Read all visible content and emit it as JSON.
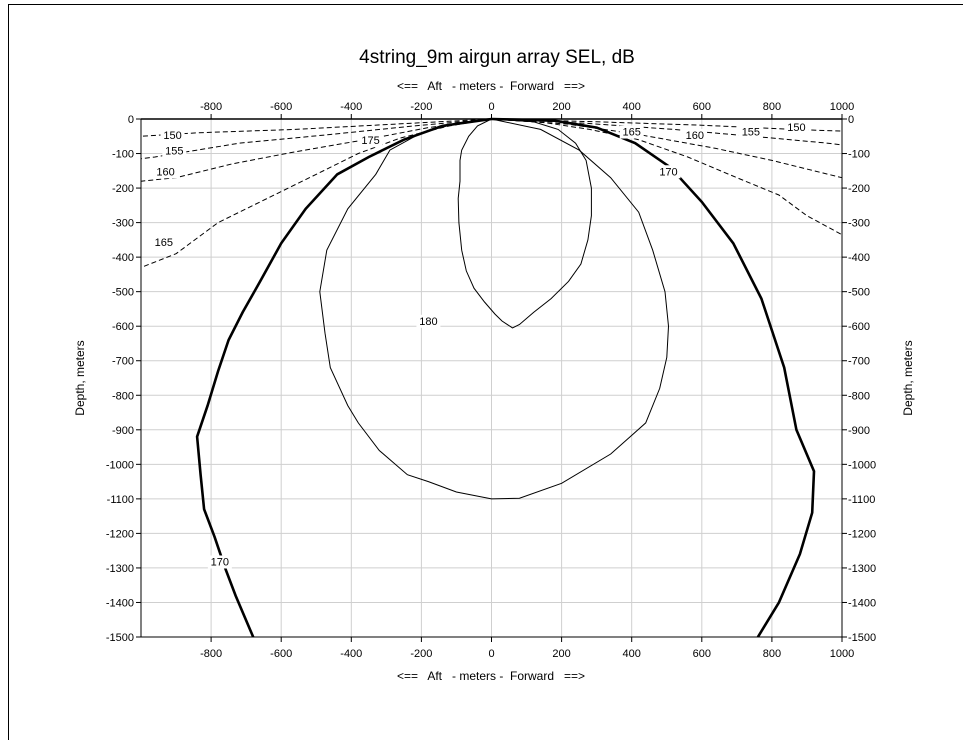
{
  "chart_data": {
    "type": "contour",
    "title": "4string_9m airgun array SEL, dB",
    "xlabel_top": "<==   Aft   - meters -  Forward   ==>",
    "xlabel_bottom": "<==   Aft   - meters -  Forward   ==>",
    "ylabel_left": "Depth, meters",
    "ylabel_right": "Depth, meters",
    "xlim": [
      -1000,
      1000
    ],
    "ylim": [
      -1500,
      0
    ],
    "x_ticks": [
      -800,
      -600,
      -400,
      -200,
      0,
      200,
      400,
      600,
      800,
      1000
    ],
    "y_ticks": [
      0,
      -100,
      -200,
      -300,
      -400,
      -500,
      -600,
      -700,
      -800,
      -900,
      -1000,
      -1100,
      -1200,
      -1300,
      -1400,
      -1500
    ],
    "grid": true,
    "contours": [
      {
        "level": "180",
        "style": "thin",
        "labels": [
          {
            "text": "180",
            "x": -180,
            "y": -593
          }
        ],
        "points": [
          [
            0,
            0
          ],
          [
            -40,
            -20
          ],
          [
            -65,
            -50
          ],
          [
            -85,
            -90
          ],
          [
            -90,
            -120
          ],
          [
            -90,
            -180
          ],
          [
            -95,
            -230
          ],
          [
            -93,
            -300
          ],
          [
            -85,
            -380
          ],
          [
            -72,
            -440
          ],
          [
            -50,
            -490
          ],
          [
            -20,
            -530
          ],
          [
            10,
            -565
          ],
          [
            30,
            -585
          ],
          [
            60,
            -605
          ],
          [
            80,
            -595
          ],
          [
            120,
            -560
          ],
          [
            170,
            -520
          ],
          [
            220,
            -470
          ],
          [
            255,
            -420
          ],
          [
            275,
            -350
          ],
          [
            285,
            -280
          ],
          [
            285,
            -200
          ],
          [
            270,
            -120
          ],
          [
            240,
            -70
          ],
          [
            190,
            -30
          ],
          [
            120,
            -8
          ],
          [
            0,
            0
          ]
        ]
      },
      {
        "level": "175",
        "style": "thin",
        "labels": [
          {
            "text": "175",
            "x": -345,
            "y": -70
          }
        ],
        "points": [
          [
            0,
            0
          ],
          [
            -90,
            -10
          ],
          [
            -200,
            -40
          ],
          [
            -290,
            -90
          ],
          [
            -330,
            -160
          ],
          [
            -410,
            -260
          ],
          [
            -470,
            -380
          ],
          [
            -490,
            -500
          ],
          [
            -475,
            -620
          ],
          [
            -460,
            -720
          ],
          [
            -410,
            -830
          ],
          [
            -380,
            -880
          ],
          [
            -320,
            -960
          ],
          [
            -240,
            -1030
          ],
          [
            -180,
            -1050
          ],
          [
            -100,
            -1080
          ],
          [
            0,
            -1100
          ],
          [
            80,
            -1098
          ],
          [
            200,
            -1055
          ],
          [
            340,
            -970
          ],
          [
            440,
            -880
          ],
          [
            480,
            -780
          ],
          [
            500,
            -690
          ],
          [
            505,
            -600
          ],
          [
            495,
            -500
          ],
          [
            460,
            -380
          ],
          [
            420,
            -270
          ],
          [
            340,
            -170
          ],
          [
            250,
            -90
          ],
          [
            140,
            -30
          ],
          [
            0,
            0
          ]
        ]
      },
      {
        "level": "170",
        "style": "thick",
        "labels": [
          {
            "text": "170",
            "x": 505,
            "y": -160
          },
          {
            "text": "170",
            "x": -775,
            "y": -1290
          }
        ],
        "points": [
          [
            0,
            0
          ],
          [
            -140,
            -20
          ],
          [
            -250,
            -60
          ],
          [
            -350,
            -110
          ],
          [
            -440,
            -160
          ],
          [
            -530,
            -260
          ],
          [
            -600,
            -360
          ],
          [
            -660,
            -470
          ],
          [
            -710,
            -560
          ],
          [
            -750,
            -640
          ],
          [
            -780,
            -730
          ],
          [
            -810,
            -830
          ],
          [
            -840,
            -920
          ],
          [
            -830,
            -1030
          ],
          [
            -820,
            -1130
          ],
          [
            -790,
            -1210
          ],
          [
            -760,
            -1300
          ],
          [
            -730,
            -1380
          ],
          [
            -680,
            -1500
          ]
        ],
        "points2": [
          [
            0,
            0
          ],
          [
            180,
            -5
          ],
          [
            300,
            -25
          ],
          [
            410,
            -70
          ],
          [
            510,
            -140
          ],
          [
            600,
            -240
          ],
          [
            690,
            -360
          ],
          [
            770,
            -520
          ],
          [
            835,
            -720
          ],
          [
            870,
            -900
          ],
          [
            920,
            -1020
          ],
          [
            915,
            -1140
          ],
          [
            880,
            -1260
          ],
          [
            820,
            -1400
          ],
          [
            760,
            -1500
          ]
        ]
      },
      {
        "level": "165",
        "style": "dashed",
        "labels": [
          {
            "text": "165",
            "x": 400,
            "y": -45
          },
          {
            "text": "165",
            "x": -935,
            "y": -365
          }
        ],
        "points": [
          [
            0,
            0
          ],
          [
            -120,
            -20
          ],
          [
            -260,
            -55
          ],
          [
            -380,
            -100
          ],
          [
            -500,
            -160
          ],
          [
            -620,
            -220
          ],
          [
            -780,
            -300
          ],
          [
            -900,
            -390
          ],
          [
            -1000,
            -430
          ]
        ],
        "points2": [
          [
            0,
            0
          ],
          [
            150,
            -10
          ],
          [
            280,
            -30
          ],
          [
            420,
            -60
          ],
          [
            560,
            -110
          ],
          [
            700,
            -170
          ],
          [
            820,
            -220
          ],
          [
            900,
            -280
          ],
          [
            1000,
            -335
          ]
        ]
      },
      {
        "level": "160",
        "style": "dashed",
        "labels": [
          {
            "text": "160",
            "x": 580,
            "y": -55
          },
          {
            "text": "160",
            "x": -930,
            "y": -160
          }
        ],
        "points": [
          [
            0,
            0
          ],
          [
            -180,
            -25
          ],
          [
            -360,
            -60
          ],
          [
            -560,
            -95
          ],
          [
            -740,
            -130
          ],
          [
            -900,
            -170
          ],
          [
            -1000,
            -180
          ]
        ],
        "points2": [
          [
            0,
            0
          ],
          [
            220,
            -15
          ],
          [
            420,
            -45
          ],
          [
            640,
            -85
          ],
          [
            800,
            -120
          ],
          [
            920,
            -150
          ],
          [
            1000,
            -170
          ]
        ]
      },
      {
        "level": "155",
        "style": "dashed",
        "labels": [
          {
            "text": "155",
            "x": 740,
            "y": -45
          },
          {
            "text": "155",
            "x": -905,
            "y": -100
          }
        ],
        "points": [
          [
            0,
            0
          ],
          [
            -220,
            -20
          ],
          [
            -460,
            -45
          ],
          [
            -720,
            -70
          ],
          [
            -960,
            -110
          ],
          [
            -1000,
            -115
          ]
        ],
        "points2": [
          [
            0,
            0
          ],
          [
            260,
            -12
          ],
          [
            520,
            -30
          ],
          [
            800,
            -55
          ],
          [
            960,
            -70
          ],
          [
            1000,
            -75
          ]
        ]
      },
      {
        "level": "150",
        "style": "dashed",
        "labels": [
          {
            "text": "150",
            "x": 870,
            "y": -32
          },
          {
            "text": "150",
            "x": -910,
            "y": -55
          }
        ],
        "points": [
          [
            0,
            0
          ],
          [
            -280,
            -15
          ],
          [
            -560,
            -30
          ],
          [
            -840,
            -40
          ],
          [
            -1000,
            -50
          ]
        ],
        "points2": [
          [
            0,
            0
          ],
          [
            300,
            -8
          ],
          [
            600,
            -18
          ],
          [
            860,
            -30
          ],
          [
            1000,
            -35
          ]
        ]
      }
    ]
  }
}
